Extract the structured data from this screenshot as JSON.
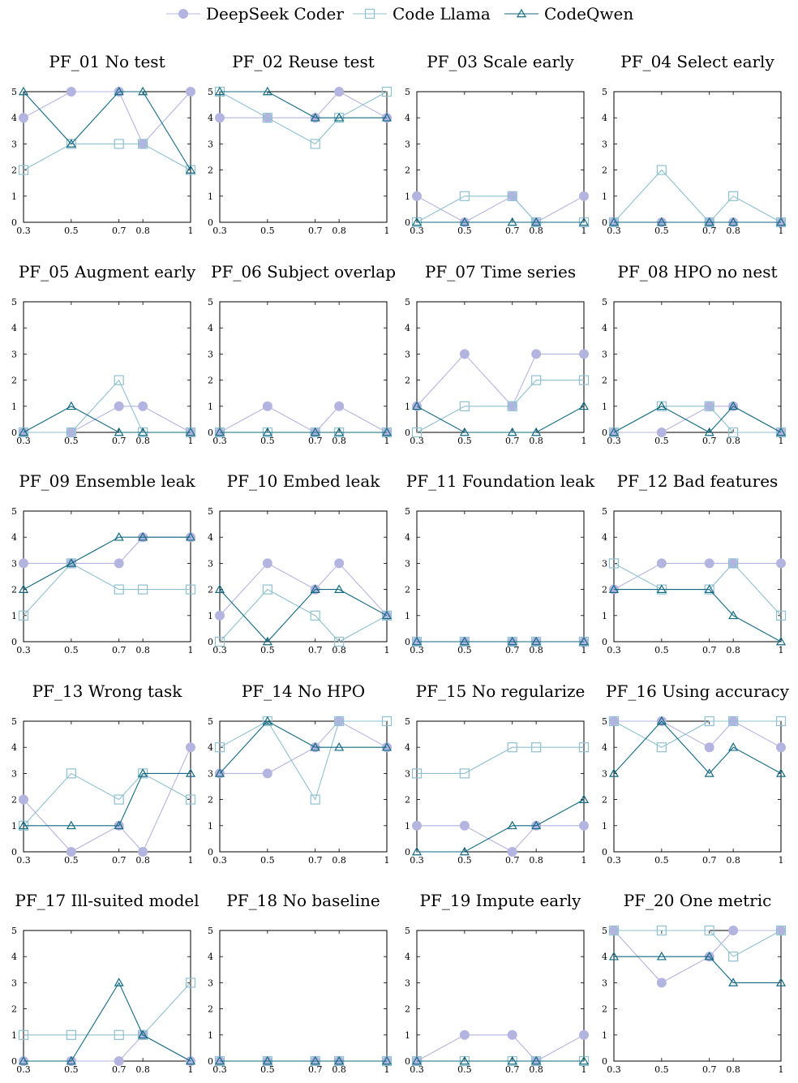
{
  "legend": {
    "placement": "top-center",
    "entries": [
      {
        "name": "DeepSeek Coder",
        "color": "#b4b4e0",
        "marker": "circle"
      },
      {
        "name": "Code Llama",
        "color": "#8fc0cf",
        "marker": "square"
      },
      {
        "name": "CodeQwen",
        "color": "#126a82",
        "marker": "triangle"
      }
    ]
  },
  "chart_data": [
    {
      "type": "line",
      "title": "PF_01 No test",
      "x": [
        0.3,
        0.5,
        0.7,
        0.8,
        1
      ],
      "ylim": [
        0,
        5
      ],
      "grid": false,
      "series": [
        {
          "name": "DeepSeek Coder",
          "values": [
            4,
            5,
            5,
            3,
            5
          ]
        },
        {
          "name": "Code Llama",
          "values": [
            2,
            3,
            3,
            3,
            2
          ]
        },
        {
          "name": "CodeQwen",
          "values": [
            5,
            3,
            5,
            5,
            2
          ]
        }
      ]
    },
    {
      "type": "line",
      "title": "PF_02 Reuse test",
      "x": [
        0.3,
        0.5,
        0.7,
        0.8,
        1
      ],
      "ylim": [
        0,
        5
      ],
      "grid": false,
      "series": [
        {
          "name": "DeepSeek Coder",
          "values": [
            4,
            4,
            4,
            5,
            4
          ]
        },
        {
          "name": "Code Llama",
          "values": [
            5,
            4,
            3,
            4,
            5
          ]
        },
        {
          "name": "CodeQwen",
          "values": [
            5,
            5,
            4,
            4,
            4
          ]
        }
      ]
    },
    {
      "type": "line",
      "title": "PF_03 Scale early",
      "x": [
        0.3,
        0.5,
        0.7,
        0.8,
        1
      ],
      "ylim": [
        0,
        5
      ],
      "grid": false,
      "series": [
        {
          "name": "DeepSeek Coder",
          "values": [
            1,
            0,
            1,
            0,
            1
          ]
        },
        {
          "name": "Code Llama",
          "values": [
            0,
            1,
            1,
            0,
            0
          ]
        },
        {
          "name": "CodeQwen",
          "values": [
            0,
            0,
            0,
            0,
            0
          ]
        }
      ]
    },
    {
      "type": "line",
      "title": "PF_04 Select early",
      "x": [
        0.3,
        0.5,
        0.7,
        0.8,
        1
      ],
      "ylim": [
        0,
        5
      ],
      "grid": false,
      "series": [
        {
          "name": "DeepSeek Coder",
          "values": [
            0,
            0,
            0,
            0,
            0
          ]
        },
        {
          "name": "Code Llama",
          "values": [
            0,
            2,
            0,
            1,
            0
          ]
        },
        {
          "name": "CodeQwen",
          "values": [
            0,
            0,
            0,
            0,
            0
          ]
        }
      ]
    },
    {
      "type": "line",
      "title": "PF_05 Augment early",
      "x": [
        0.3,
        0.5,
        0.7,
        0.8,
        1
      ],
      "ylim": [
        0,
        5
      ],
      "grid": false,
      "series": [
        {
          "name": "DeepSeek Coder",
          "values": [
            0,
            0,
            1,
            1,
            0
          ]
        },
        {
          "name": "Code Llama",
          "values": [
            0,
            0,
            2,
            0,
            0
          ]
        },
        {
          "name": "CodeQwen",
          "values": [
            0,
            1,
            0,
            0,
            0
          ]
        }
      ]
    },
    {
      "type": "line",
      "title": "PF_06 Subject overlap",
      "x": [
        0.3,
        0.5,
        0.7,
        0.8,
        1
      ],
      "ylim": [
        0,
        5
      ],
      "grid": false,
      "series": [
        {
          "name": "DeepSeek Coder",
          "values": [
            0,
            1,
            0,
            1,
            0
          ]
        },
        {
          "name": "Code Llama",
          "values": [
            0,
            0,
            0,
            0,
            0
          ]
        },
        {
          "name": "CodeQwen",
          "values": [
            0,
            0,
            0,
            0,
            0
          ]
        }
      ]
    },
    {
      "type": "line",
      "title": "PF_07 Time series",
      "x": [
        0.3,
        0.5,
        0.7,
        0.8,
        1
      ],
      "ylim": [
        0,
        5
      ],
      "grid": false,
      "series": [
        {
          "name": "DeepSeek Coder",
          "values": [
            1,
            3,
            1,
            3,
            3
          ]
        },
        {
          "name": "Code Llama",
          "values": [
            0,
            1,
            1,
            2,
            2
          ]
        },
        {
          "name": "CodeQwen",
          "values": [
            1,
            0,
            0,
            0,
            1
          ]
        }
      ]
    },
    {
      "type": "line",
      "title": "PF_08 HPO no nest",
      "x": [
        0.3,
        0.5,
        0.7,
        0.8,
        1
      ],
      "ylim": [
        0,
        5
      ],
      "grid": false,
      "series": [
        {
          "name": "DeepSeek Coder",
          "values": [
            0,
            0,
            1,
            1,
            0
          ]
        },
        {
          "name": "Code Llama",
          "values": [
            0,
            1,
            1,
            0,
            0
          ]
        },
        {
          "name": "CodeQwen",
          "values": [
            0,
            1,
            0,
            1,
            0
          ]
        }
      ]
    },
    {
      "type": "line",
      "title": "PF_09 Ensemble leak",
      "x": [
        0.3,
        0.5,
        0.7,
        0.8,
        1
      ],
      "ylim": [
        0,
        5
      ],
      "grid": false,
      "series": [
        {
          "name": "DeepSeek Coder",
          "values": [
            3,
            3,
            3,
            4,
            4
          ]
        },
        {
          "name": "Code Llama",
          "values": [
            1,
            3,
            2,
            2,
            2
          ]
        },
        {
          "name": "CodeQwen",
          "values": [
            2,
            3,
            4,
            4,
            4
          ]
        }
      ]
    },
    {
      "type": "line",
      "title": "PF_10 Embed leak",
      "x": [
        0.3,
        0.5,
        0.7,
        0.8,
        1
      ],
      "ylim": [
        0,
        5
      ],
      "grid": false,
      "series": [
        {
          "name": "DeepSeek Coder",
          "values": [
            1,
            3,
            2,
            3,
            1
          ]
        },
        {
          "name": "Code Llama",
          "values": [
            0,
            2,
            1,
            0,
            1
          ]
        },
        {
          "name": "CodeQwen",
          "values": [
            2,
            0,
            2,
            2,
            1
          ]
        }
      ]
    },
    {
      "type": "line",
      "title": "PF_11 Foundation leak",
      "x": [
        0.3,
        0.5,
        0.7,
        0.8,
        1
      ],
      "ylim": [
        0,
        5
      ],
      "grid": false,
      "series": [
        {
          "name": "DeepSeek Coder",
          "values": [
            0,
            0,
            0,
            0,
            0
          ]
        },
        {
          "name": "Code Llama",
          "values": [
            0,
            0,
            0,
            0,
            0
          ]
        },
        {
          "name": "CodeQwen",
          "values": [
            0,
            0,
            0,
            0,
            0
          ]
        }
      ]
    },
    {
      "type": "line",
      "title": "PF_12 Bad features",
      "x": [
        0.3,
        0.5,
        0.7,
        0.8,
        1
      ],
      "ylim": [
        0,
        5
      ],
      "grid": false,
      "series": [
        {
          "name": "DeepSeek Coder",
          "values": [
            2,
            3,
            3,
            3,
            3
          ]
        },
        {
          "name": "Code Llama",
          "values": [
            3,
            2,
            2,
            3,
            1
          ]
        },
        {
          "name": "CodeQwen",
          "values": [
            2,
            2,
            2,
            1,
            0
          ]
        }
      ]
    },
    {
      "type": "line",
      "title": "PF_13 Wrong task",
      "x": [
        0.3,
        0.5,
        0.7,
        0.8,
        1
      ],
      "ylim": [
        0,
        5
      ],
      "grid": false,
      "series": [
        {
          "name": "DeepSeek Coder",
          "values": [
            2,
            0,
            1,
            0,
            4
          ]
        },
        {
          "name": "Code Llama",
          "values": [
            1,
            3,
            2,
            3,
            2
          ]
        },
        {
          "name": "CodeQwen",
          "values": [
            1,
            1,
            1,
            3,
            3
          ]
        }
      ]
    },
    {
      "type": "line",
      "title": "PF_14 No HPO",
      "x": [
        0.3,
        0.5,
        0.7,
        0.8,
        1
      ],
      "ylim": [
        0,
        5
      ],
      "grid": false,
      "series": [
        {
          "name": "DeepSeek Coder",
          "values": [
            3,
            3,
            4,
            5,
            4
          ]
        },
        {
          "name": "Code Llama",
          "values": [
            4,
            5,
            2,
            5,
            5
          ]
        },
        {
          "name": "CodeQwen",
          "values": [
            3,
            5,
            4,
            4,
            4
          ]
        }
      ]
    },
    {
      "type": "line",
      "title": "PF_15 No regularize",
      "x": [
        0.3,
        0.5,
        0.7,
        0.8,
        1
      ],
      "ylim": [
        0,
        5
      ],
      "grid": false,
      "series": [
        {
          "name": "DeepSeek Coder",
          "values": [
            1,
            1,
            0,
            1,
            1
          ]
        },
        {
          "name": "Code Llama",
          "values": [
            3,
            3,
            4,
            4,
            4
          ]
        },
        {
          "name": "CodeQwen",
          "values": [
            0,
            0,
            1,
            1,
            2
          ]
        }
      ]
    },
    {
      "type": "line",
      "title": "PF_16 Using accuracy",
      "x": [
        0.3,
        0.5,
        0.7,
        0.8,
        1
      ],
      "ylim": [
        0,
        5
      ],
      "grid": false,
      "series": [
        {
          "name": "DeepSeek Coder",
          "values": [
            5,
            5,
            4,
            5,
            4
          ]
        },
        {
          "name": "Code Llama",
          "values": [
            5,
            4,
            5,
            5,
            5
          ]
        },
        {
          "name": "CodeQwen",
          "values": [
            3,
            5,
            3,
            4,
            3
          ]
        }
      ]
    },
    {
      "type": "line",
      "title": "PF_17 Ill-suited model",
      "x": [
        0.3,
        0.5,
        0.7,
        0.8,
        1
      ],
      "ylim": [
        0,
        5
      ],
      "grid": false,
      "series": [
        {
          "name": "DeepSeek Coder",
          "values": [
            0,
            0,
            0,
            1,
            0
          ]
        },
        {
          "name": "Code Llama",
          "values": [
            1,
            1,
            1,
            1,
            3
          ]
        },
        {
          "name": "CodeQwen",
          "values": [
            0,
            0,
            3,
            1,
            0
          ]
        }
      ]
    },
    {
      "type": "line",
      "title": "PF_18 No baseline",
      "x": [
        0.3,
        0.5,
        0.7,
        0.8,
        1
      ],
      "ylim": [
        0,
        5
      ],
      "grid": false,
      "series": [
        {
          "name": "DeepSeek Coder",
          "values": [
            0,
            0,
            0,
            0,
            0
          ]
        },
        {
          "name": "Code Llama",
          "values": [
            0,
            0,
            0,
            0,
            0
          ]
        },
        {
          "name": "CodeQwen",
          "values": [
            0,
            0,
            0,
            0,
            0
          ]
        }
      ]
    },
    {
      "type": "line",
      "title": "PF_19 Impute early",
      "x": [
        0.3,
        0.5,
        0.7,
        0.8,
        1
      ],
      "ylim": [
        0,
        5
      ],
      "grid": false,
      "series": [
        {
          "name": "DeepSeek Coder",
          "values": [
            0,
            1,
            1,
            0,
            1
          ]
        },
        {
          "name": "Code Llama",
          "values": [
            0,
            0,
            0,
            0,
            0
          ]
        },
        {
          "name": "CodeQwen",
          "values": [
            0,
            0,
            0,
            0,
            0
          ]
        }
      ]
    },
    {
      "type": "line",
      "title": "PF_20 One metric",
      "x": [
        0.3,
        0.5,
        0.7,
        0.8,
        1
      ],
      "ylim": [
        0,
        5
      ],
      "grid": false,
      "series": [
        {
          "name": "DeepSeek Coder",
          "values": [
            5,
            3,
            4,
            5,
            5
          ]
        },
        {
          "name": "Code Llama",
          "values": [
            5,
            5,
            5,
            4,
            5
          ]
        },
        {
          "name": "CodeQwen",
          "values": [
            4,
            4,
            4,
            3,
            3
          ]
        }
      ]
    }
  ]
}
